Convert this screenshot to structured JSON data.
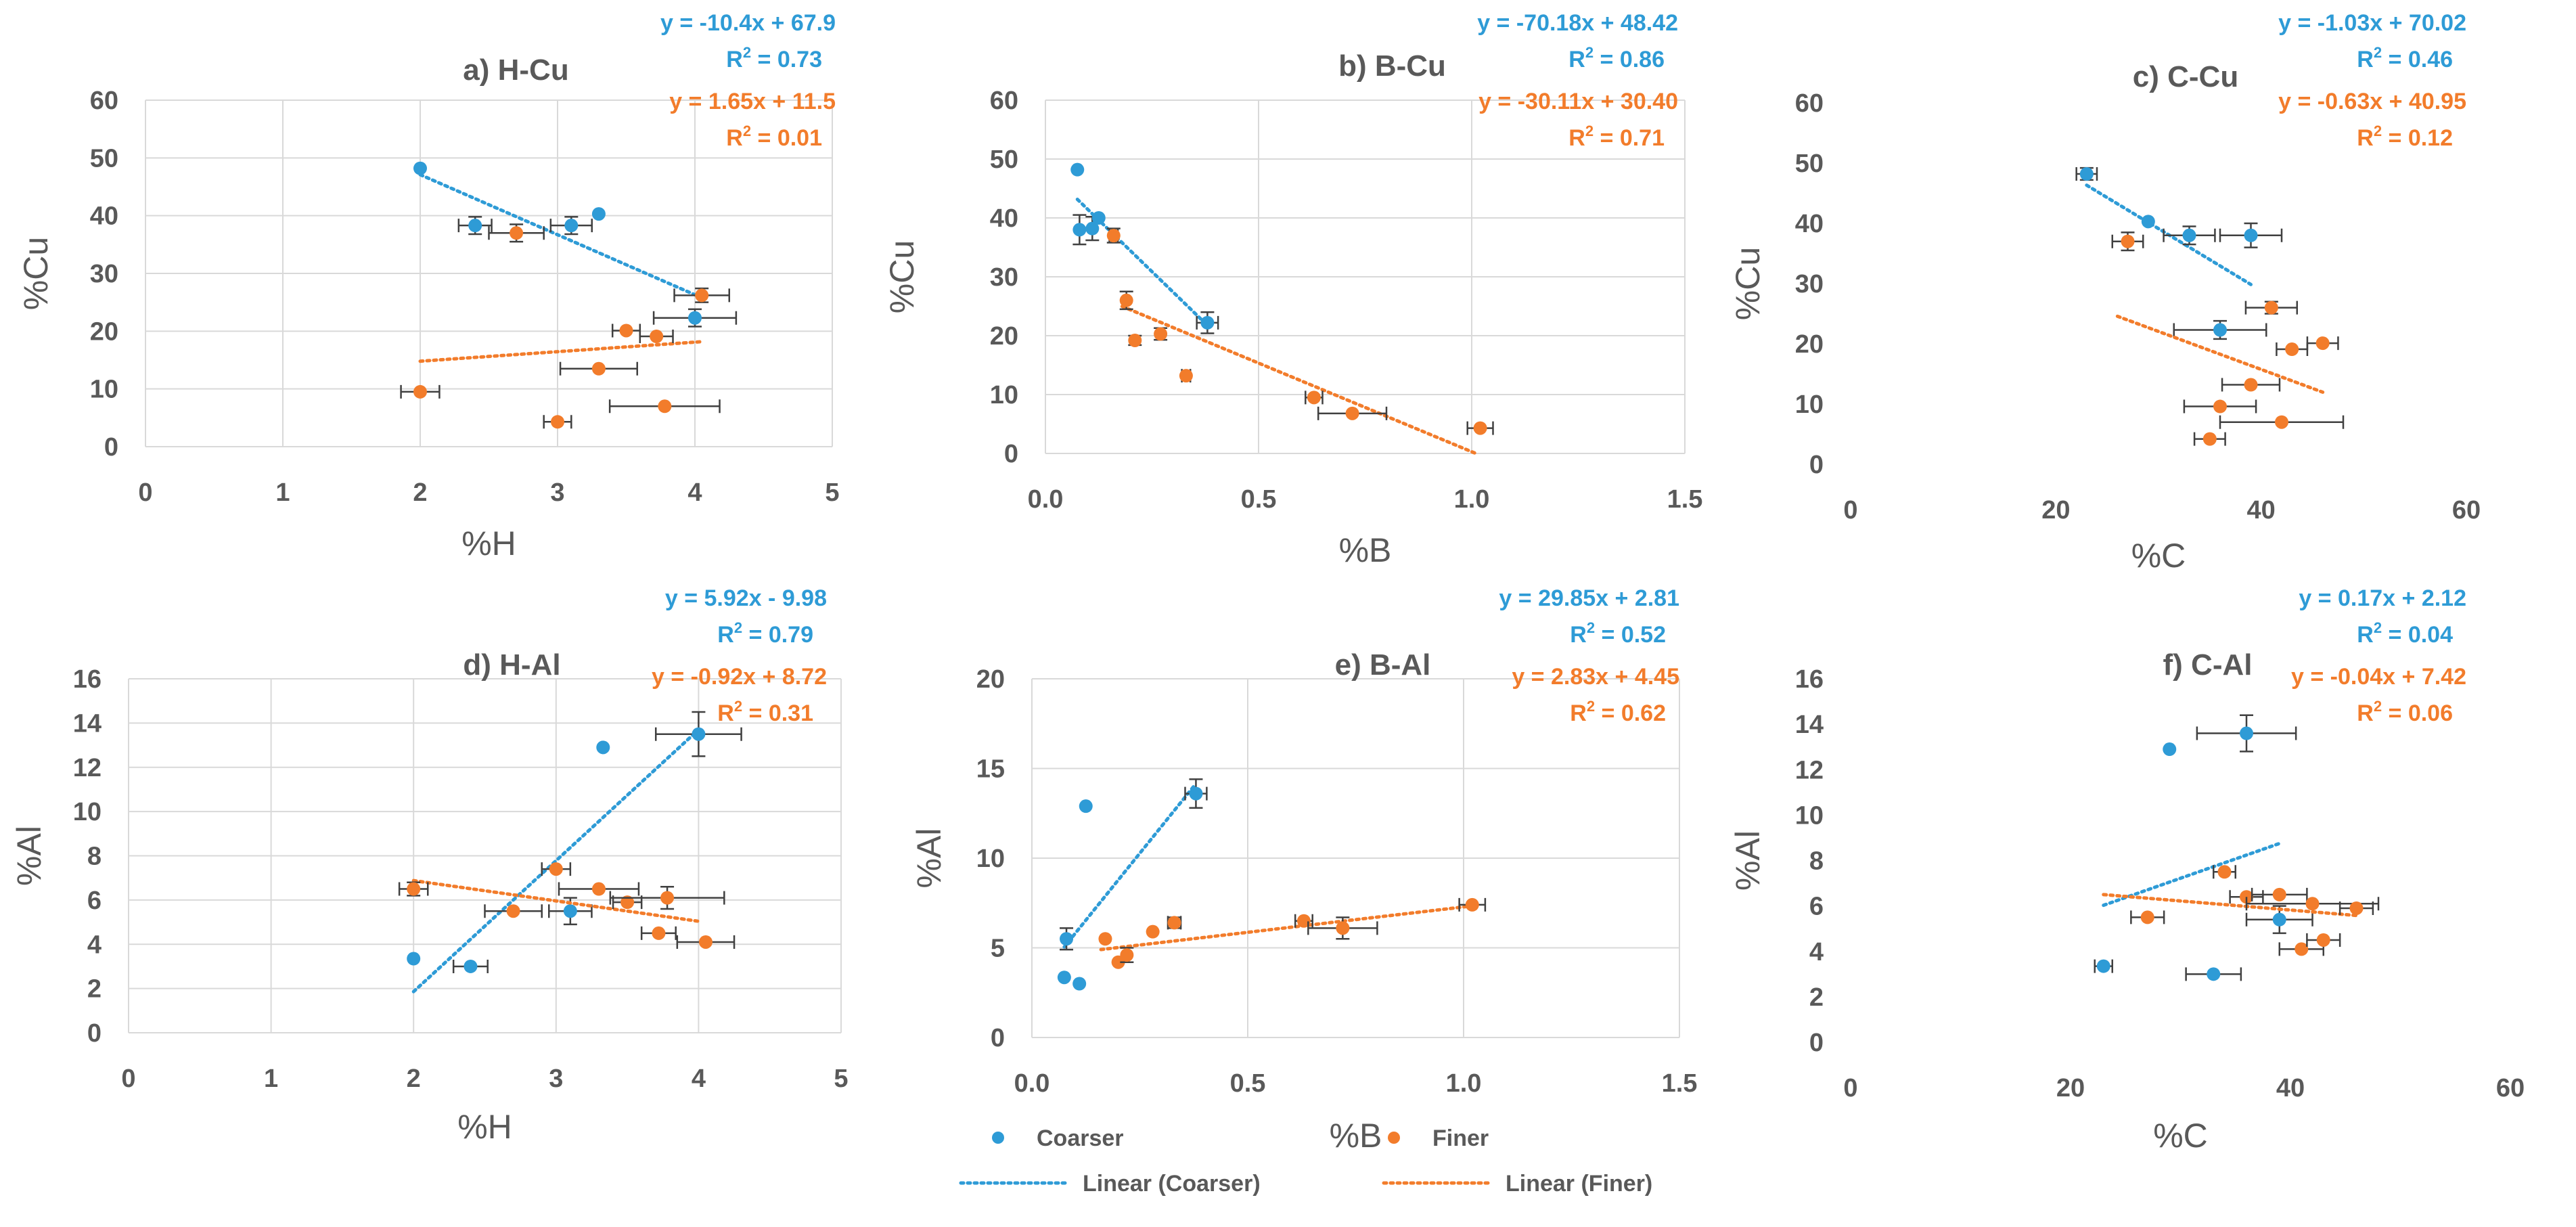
{
  "colors": {
    "coarser": "#2e9bd6",
    "finer": "#f27c2b",
    "grid": "#d9d9d9",
    "text": "#595959"
  },
  "legend": {
    "items": [
      {
        "label": "Coarser",
        "kind": "marker",
        "series": "coarser"
      },
      {
        "label": "Finer",
        "kind": "marker",
        "series": "finer"
      },
      {
        "label": "Linear (Coarser)",
        "kind": "line",
        "series": "coarser"
      },
      {
        "label": "Linear (Finer)",
        "kind": "line",
        "series": "finer"
      }
    ]
  },
  "chart_data": [
    {
      "id": "a",
      "type": "scatter",
      "title": "a) H-Cu",
      "xlabel": "%H",
      "ylabel": "%Cu",
      "xlim": [
        0,
        5
      ],
      "ylim": [
        0,
        60
      ],
      "xticks": [
        {
          "v": 0,
          "t": "0"
        },
        {
          "v": 1,
          "t": "1"
        },
        {
          "v": 2,
          "t": "2"
        },
        {
          "v": 3,
          "t": "3"
        },
        {
          "v": 4,
          "t": "4"
        },
        {
          "v": 5,
          "t": "5"
        }
      ],
      "yticks": [
        {
          "v": 0,
          "t": "0"
        },
        {
          "v": 10,
          "t": "10"
        },
        {
          "v": 20,
          "t": "20"
        },
        {
          "v": 30,
          "t": "30"
        },
        {
          "v": 40,
          "t": "40"
        },
        {
          "v": 50,
          "t": "50"
        },
        {
          "v": 60,
          "t": "60"
        }
      ],
      "grid": true,
      "equations": [
        {
          "series": "coarser",
          "eq": "y = -10.4x + 67.9",
          "r2": "0.73"
        },
        {
          "series": "finer",
          "eq": "y = 1.65x + 11.5",
          "r2": "0.01"
        }
      ],
      "series": [
        {
          "key": "coarser",
          "trend": {
            "x": [
              2,
              4
            ]
          },
          "points": [
            {
              "x": 2.0,
              "y": 48.2
            },
            {
              "x": 2.4,
              "y": 38.3,
              "xe": 0.12,
              "ye": 1.5
            },
            {
              "x": 3.1,
              "y": 38.3,
              "xe": 0.15,
              "ye": 1.5
            },
            {
              "x": 3.3,
              "y": 40.3
            },
            {
              "x": 4.0,
              "y": 22.3,
              "xe": 0.3,
              "ye": 1.5
            }
          ]
        },
        {
          "key": "finer",
          "trend": {
            "x": [
              2,
              4.05
            ]
          },
          "points": [
            {
              "x": 2.7,
              "y": 37.0,
              "xe": 0.2,
              "ye": 1.5
            },
            {
              "x": 4.05,
              "y": 26.2,
              "xe": 0.2,
              "ye": 1.2
            },
            {
              "x": 3.5,
              "y": 20.1,
              "xe": 0.1
            },
            {
              "x": 3.72,
              "y": 19.1,
              "xe": 0.12
            },
            {
              "x": 3.3,
              "y": 13.5,
              "xe": 0.28
            },
            {
              "x": 2.0,
              "y": 9.5,
              "xe": 0.14
            },
            {
              "x": 3.78,
              "y": 7.0,
              "xe": 0.4
            },
            {
              "x": 3.0,
              "y": 4.3,
              "xe": 0.1
            }
          ]
        }
      ]
    },
    {
      "id": "b",
      "type": "scatter",
      "title": "b) B-Cu",
      "xlabel": "%B",
      "ylabel": "%Cu",
      "xlim": [
        0,
        1.5
      ],
      "ylim": [
        0,
        60
      ],
      "xticks": [
        {
          "v": 0,
          "t": "0.0"
        },
        {
          "v": 0.5,
          "t": "0.5"
        },
        {
          "v": 1,
          "t": "1.0"
        },
        {
          "v": 1.5,
          "t": "1.5"
        }
      ],
      "yticks": [
        {
          "v": 0,
          "t": "0"
        },
        {
          "v": 10,
          "t": "10"
        },
        {
          "v": 20,
          "t": "20"
        },
        {
          "v": 30,
          "t": "30"
        },
        {
          "v": 40,
          "t": "40"
        },
        {
          "v": 50,
          "t": "50"
        },
        {
          "v": 60,
          "t": "60"
        }
      ],
      "grid": true,
      "equations": [
        {
          "series": "coarser",
          "eq": "y = -70.18x + 48.42",
          "r2": "0.86"
        },
        {
          "series": "finer",
          "eq": "y = -30.11x + 30.40",
          "r2": "0.71"
        }
      ],
      "series": [
        {
          "key": "coarser",
          "trend": {
            "x": [
              0.075,
              0.38
            ]
          },
          "points": [
            {
              "x": 0.075,
              "y": 48.2
            },
            {
              "x": 0.08,
              "y": 38.0,
              "ye": 2.5
            },
            {
              "x": 0.11,
              "y": 38.2,
              "ye": 2.0
            },
            {
              "x": 0.125,
              "y": 40.0
            },
            {
              "x": 0.38,
              "y": 22.2,
              "xe": 0.025,
              "ye": 1.8
            }
          ]
        },
        {
          "key": "finer",
          "trend": {
            "x": [
              0.18,
              1.01
            ]
          },
          "points": [
            {
              "x": 0.16,
              "y": 37.0,
              "xe": 0.01,
              "ye": 1.2
            },
            {
              "x": 0.19,
              "y": 26.0,
              "ye": 1.5
            },
            {
              "x": 0.21,
              "y": 19.2,
              "ye": 0.8
            },
            {
              "x": 0.27,
              "y": 20.3,
              "ye": 1.0
            },
            {
              "x": 0.33,
              "y": 13.2,
              "xe": 0.01
            },
            {
              "x": 0.63,
              "y": 9.5,
              "xe": 0.02
            },
            {
              "x": 0.72,
              "y": 6.8,
              "xe": 0.08
            },
            {
              "x": 1.02,
              "y": 4.3,
              "xe": 0.03
            }
          ]
        }
      ]
    },
    {
      "id": "c",
      "type": "scatter",
      "title": "c) C-Cu",
      "xlabel": "%C",
      "ylabel": "%Cu",
      "xlim": [
        0,
        60
      ],
      "ylim": [
        0,
        60
      ],
      "xticks": [
        {
          "v": 0,
          "t": "0"
        },
        {
          "v": 20,
          "t": "20"
        },
        {
          "v": 40,
          "t": "40"
        },
        {
          "v": 60,
          "t": "60"
        }
      ],
      "yticks": [
        {
          "v": 0,
          "t": "0"
        },
        {
          "v": 10,
          "t": "10"
        },
        {
          "v": 20,
          "t": "20"
        },
        {
          "v": 30,
          "t": "30"
        },
        {
          "v": 40,
          "t": "40"
        },
        {
          "v": 50,
          "t": "50"
        },
        {
          "v": 60,
          "t": "60"
        }
      ],
      "grid": false,
      "equations": [
        {
          "series": "coarser",
          "eq": "y = -1.03x + 70.02",
          "r2": "0.46"
        },
        {
          "series": "finer",
          "eq": "y = -0.63x + 40.95",
          "r2": "0.12"
        }
      ],
      "series": [
        {
          "key": "coarser",
          "trend": {
            "x": [
              23,
              39
            ]
          },
          "points": [
            {
              "x": 23.0,
              "y": 48.2,
              "xe": 1.0,
              "ye": 1.0
            },
            {
              "x": 29.0,
              "y": 40.3
            },
            {
              "x": 33.0,
              "y": 38.0,
              "xe": 2.5,
              "ye": 1.5
            },
            {
              "x": 39.0,
              "y": 38.0,
              "xe": 3.0,
              "ye": 2.0
            },
            {
              "x": 36.0,
              "y": 22.3,
              "xe": 4.5,
              "ye": 1.5
            }
          ]
        },
        {
          "key": "finer",
          "trend": {
            "x": [
              26,
              46
            ]
          },
          "points": [
            {
              "x": 27.0,
              "y": 37.0,
              "xe": 1.5,
              "ye": 1.5
            },
            {
              "x": 41.0,
              "y": 26.0,
              "xe": 2.5,
              "ye": 1.0
            },
            {
              "x": 46.0,
              "y": 20.1,
              "xe": 1.5
            },
            {
              "x": 43.0,
              "y": 19.1,
              "xe": 1.5
            },
            {
              "x": 39.0,
              "y": 13.2,
              "xe": 2.8
            },
            {
              "x": 36.0,
              "y": 9.6,
              "xe": 3.5
            },
            {
              "x": 42.0,
              "y": 7.0,
              "xe": 6.0
            },
            {
              "x": 35.0,
              "y": 4.2,
              "xe": 1.5
            }
          ]
        }
      ]
    },
    {
      "id": "d",
      "type": "scatter",
      "title": "d) H-Al",
      "xlabel": "%H",
      "ylabel": "%Al",
      "xlim": [
        0,
        5
      ],
      "ylim": [
        0,
        16
      ],
      "xticks": [
        {
          "v": 0,
          "t": "0"
        },
        {
          "v": 1,
          "t": "1"
        },
        {
          "v": 2,
          "t": "2"
        },
        {
          "v": 3,
          "t": "3"
        },
        {
          "v": 4,
          "t": "4"
        },
        {
          "v": 5,
          "t": "5"
        }
      ],
      "yticks": [
        {
          "v": 0,
          "t": "0"
        },
        {
          "v": 2,
          "t": "2"
        },
        {
          "v": 4,
          "t": "4"
        },
        {
          "v": 6,
          "t": "6"
        },
        {
          "v": 8,
          "t": "8"
        },
        {
          "v": 10,
          "t": "10"
        },
        {
          "v": 12,
          "t": "12"
        },
        {
          "v": 14,
          "t": "14"
        },
        {
          "v": 16,
          "t": "16"
        }
      ],
      "grid": true,
      "equations": [
        {
          "series": "coarser",
          "eq": "y = 5.92x - 9.98",
          "r2": "0.79"
        },
        {
          "series": "finer",
          "eq": "y = -0.92x + 8.72",
          "r2": "0.31"
        }
      ],
      "series": [
        {
          "key": "coarser",
          "trend": {
            "x": [
              2,
              4
            ]
          },
          "points": [
            {
              "x": 2.0,
              "y": 3.35
            },
            {
              "x": 2.4,
              "y": 3.0,
              "xe": 0.12
            },
            {
              "x": 3.1,
              "y": 5.5,
              "xe": 0.15,
              "ye": 0.6
            },
            {
              "x": 3.33,
              "y": 12.9
            },
            {
              "x": 4.0,
              "y": 13.5,
              "xe": 0.3,
              "ye": 1.0
            }
          ]
        },
        {
          "key": "finer",
          "trend": {
            "x": [
              2,
              4
            ]
          },
          "points": [
            {
              "x": 2.0,
              "y": 6.5,
              "xe": 0.1,
              "ye": 0.3
            },
            {
              "x": 2.7,
              "y": 5.5,
              "xe": 0.2
            },
            {
              "x": 3.0,
              "y": 7.4,
              "xe": 0.1
            },
            {
              "x": 3.3,
              "y": 6.5,
              "xe": 0.28
            },
            {
              "x": 3.5,
              "y": 5.9,
              "xe": 0.1
            },
            {
              "x": 3.72,
              "y": 4.5,
              "xe": 0.12
            },
            {
              "x": 3.78,
              "y": 6.1,
              "xe": 0.4,
              "ye": 0.5
            },
            {
              "x": 4.05,
              "y": 4.1,
              "xe": 0.2
            }
          ]
        }
      ]
    },
    {
      "id": "e",
      "type": "scatter",
      "title": "e) B-Al",
      "xlabel": "%B",
      "ylabel": "%Al",
      "xlim": [
        0,
        1.5
      ],
      "ylim": [
        0,
        20
      ],
      "xticks": [
        {
          "v": 0,
          "t": "0.0"
        },
        {
          "v": 0.5,
          "t": "0.5"
        },
        {
          "v": 1,
          "t": "1.0"
        },
        {
          "v": 1.5,
          "t": "1.5"
        }
      ],
      "yticks": [
        {
          "v": 0,
          "t": "0"
        },
        {
          "v": 5,
          "t": "5"
        },
        {
          "v": 10,
          "t": "10"
        },
        {
          "v": 15,
          "t": "15"
        },
        {
          "v": 20,
          "t": "20"
        }
      ],
      "grid": true,
      "equations": [
        {
          "series": "coarser",
          "eq": "y = 29.85x + 2.81",
          "r2": "0.52"
        },
        {
          "series": "finer",
          "eq": "y = 2.83x + 4.45",
          "r2": "0.62"
        }
      ],
      "series": [
        {
          "key": "coarser",
          "trend": {
            "x": [
              0.075,
              0.38
            ]
          },
          "points": [
            {
              "x": 0.075,
              "y": 3.35
            },
            {
              "x": 0.08,
              "y": 5.5,
              "ye": 0.6
            },
            {
              "x": 0.11,
              "y": 3.0
            },
            {
              "x": 0.125,
              "y": 12.9
            },
            {
              "x": 0.38,
              "y": 13.6,
              "xe": 0.025,
              "ye": 0.8
            }
          ]
        },
        {
          "key": "finer",
          "trend": {
            "x": [
              0.16,
              1.02
            ]
          },
          "points": [
            {
              "x": 0.17,
              "y": 5.5
            },
            {
              "x": 0.2,
              "y": 4.2
            },
            {
              "x": 0.22,
              "y": 4.6,
              "ye": 0.4
            },
            {
              "x": 0.28,
              "y": 5.9
            },
            {
              "x": 0.33,
              "y": 6.4,
              "xe": 0.015,
              "ye": 0.3
            },
            {
              "x": 0.63,
              "y": 6.5,
              "xe": 0.02
            },
            {
              "x": 0.72,
              "y": 6.1,
              "xe": 0.08,
              "ye": 0.6
            },
            {
              "x": 1.02,
              "y": 7.4,
              "xe": 0.03
            }
          ]
        }
      ]
    },
    {
      "id": "f",
      "type": "scatter",
      "title": "f) C-Al",
      "xlabel": "%C",
      "ylabel": "%Al",
      "xlim": [
        0,
        60
      ],
      "ylim": [
        0,
        16
      ],
      "xticks": [
        {
          "v": 0,
          "t": "0"
        },
        {
          "v": 20,
          "t": "20"
        },
        {
          "v": 40,
          "t": "40"
        },
        {
          "v": 60,
          "t": "60"
        }
      ],
      "yticks": [
        {
          "v": 0,
          "t": "0"
        },
        {
          "v": 2,
          "t": "2"
        },
        {
          "v": 4,
          "t": "4"
        },
        {
          "v": 6,
          "t": "6"
        },
        {
          "v": 8,
          "t": "8"
        },
        {
          "v": 10,
          "t": "10"
        },
        {
          "v": 12,
          "t": "12"
        },
        {
          "v": 14,
          "t": "14"
        },
        {
          "v": 16,
          "t": "16"
        }
      ],
      "grid": false,
      "equations": [
        {
          "series": "coarser",
          "eq": "y = 0.17x + 2.12",
          "r2": "0.04"
        },
        {
          "series": "finer",
          "eq": "y = -0.04x + 7.42",
          "r2": "0.06"
        }
      ],
      "series": [
        {
          "key": "coarser",
          "trend": {
            "x": [
              23,
              39
            ]
          },
          "points": [
            {
              "x": 23.0,
              "y": 3.35,
              "xe": 0.8
            },
            {
              "x": 29.0,
              "y": 12.9
            },
            {
              "x": 33.0,
              "y": 3.0,
              "xe": 2.5
            },
            {
              "x": 36.0,
              "y": 13.6,
              "xe": 4.5,
              "ye": 0.8
            },
            {
              "x": 39.0,
              "y": 5.4,
              "xe": 3.0,
              "ye": 0.6
            }
          ]
        },
        {
          "key": "finer",
          "trend": {
            "x": [
              23,
              46
            ]
          },
          "points": [
            {
              "x": 27.0,
              "y": 5.5,
              "xe": 1.5
            },
            {
              "x": 34.0,
              "y": 7.5,
              "xe": 1.0
            },
            {
              "x": 36.0,
              "y": 6.4,
              "xe": 1.5
            },
            {
              "x": 39.0,
              "y": 6.5,
              "xe": 2.5
            },
            {
              "x": 42.0,
              "y": 6.1,
              "xe": 6.0
            },
            {
              "x": 46.0,
              "y": 5.9,
              "xe": 1.5
            },
            {
              "x": 41.0,
              "y": 4.1,
              "xe": 2.0
            },
            {
              "x": 43.0,
              "y": 4.5,
              "xe": 1.5
            }
          ]
        }
      ]
    }
  ]
}
